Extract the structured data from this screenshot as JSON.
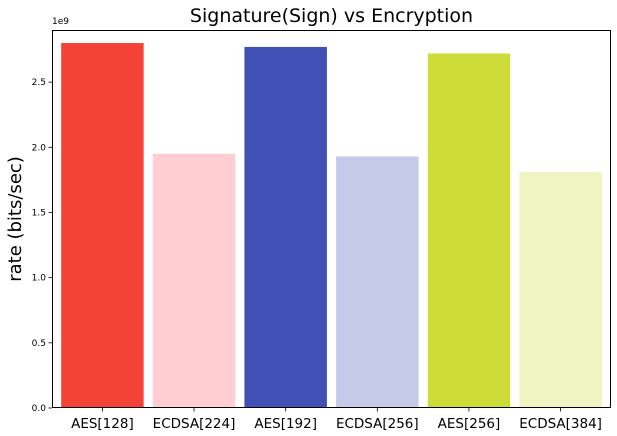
{
  "chart_data": {
    "type": "bar",
    "title": "Signature(Sign) vs Encryption",
    "xlabel": "",
    "ylabel": "rate (bits/sec)",
    "y_offset_label": "1e9",
    "ylim": [
      0,
      2.9
    ],
    "y_ticks": [
      0.0,
      0.5,
      1.0,
      1.5,
      2.0,
      2.5
    ],
    "y_tick_labels": [
      "0.0",
      "0.5",
      "1.0",
      "1.5",
      "2.0",
      "2.5"
    ],
    "categories": [
      "AES[128]",
      "ECDSA[224]",
      "AES[192]",
      "ECDSA[256]",
      "AES[256]",
      "ECDSA[384]"
    ],
    "values": [
      2.8,
      1.95,
      2.77,
      1.93,
      2.72,
      1.81
    ],
    "colors": [
      "#f44336",
      "#ffcdd2",
      "#3f51b5",
      "#c5cae9",
      "#cddc39",
      "#f0f4c3"
    ],
    "grid": false,
    "legend": "none"
  }
}
